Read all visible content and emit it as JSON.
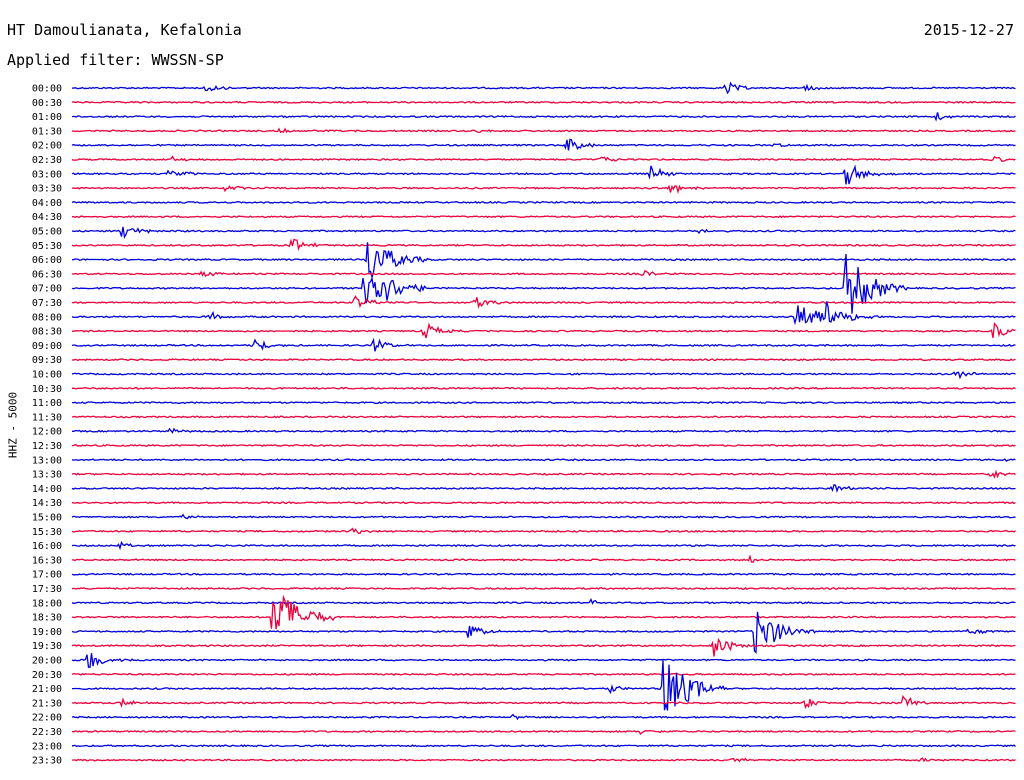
{
  "header": {
    "station": "HT Damoulianata, Kefalonia",
    "date": "2015-12-27",
    "filter": "Applied filter: WWSSN-SP"
  },
  "colors": {
    "even_trace": "#0000e0",
    "odd_trace": "#f0003c"
  },
  "chart_data": {
    "type": "line",
    "title": "HT Damoulianata, Kefalonia",
    "subtitle": "Applied filter: WWSSN-SP",
    "ylabel": "HHZ - 5000",
    "xlabel": "",
    "x_unit": "minutes within 30-min row",
    "xlim": [
      0,
      30
    ],
    "row_labels": [
      "00:00",
      "00:30",
      "01:00",
      "01:30",
      "02:00",
      "02:30",
      "03:00",
      "03:30",
      "04:00",
      "04:30",
      "05:00",
      "05:30",
      "06:00",
      "06:30",
      "07:00",
      "07:30",
      "08:00",
      "08:30",
      "09:00",
      "09:30",
      "10:00",
      "10:30",
      "11:00",
      "11:30",
      "12:00",
      "12:30",
      "13:00",
      "13:30",
      "14:00",
      "14:30",
      "15:00",
      "15:30",
      "16:00",
      "16:30",
      "17:00",
      "17:30",
      "18:00",
      "18:30",
      "19:00",
      "19:30",
      "20:00",
      "20:30",
      "21:00",
      "21:30",
      "22:00",
      "22:30",
      "23:00",
      "23:30"
    ],
    "row_colors_alternate": [
      "blue",
      "red"
    ],
    "events": [
      {
        "row": 0,
        "t": 4.2,
        "amp": 0.9
      },
      {
        "row": 0,
        "t": 20.8,
        "amp": 1.1
      },
      {
        "row": 0,
        "t": 23.3,
        "amp": 0.5
      },
      {
        "row": 2,
        "t": 27.5,
        "amp": 0.7
      },
      {
        "row": 3,
        "t": 6.6,
        "amp": 0.4
      },
      {
        "row": 3,
        "t": 12.9,
        "amp": 0.4
      },
      {
        "row": 4,
        "t": 15.7,
        "amp": 1.4
      },
      {
        "row": 4,
        "t": 22.3,
        "amp": 0.4
      },
      {
        "row": 5,
        "t": 3.2,
        "amp": 0.4
      },
      {
        "row": 5,
        "t": 16.8,
        "amp": 0.5
      },
      {
        "row": 5,
        "t": 29.3,
        "amp": 0.6
      },
      {
        "row": 6,
        "t": 3.1,
        "amp": 1.1
      },
      {
        "row": 6,
        "t": 18.4,
        "amp": 1.1
      },
      {
        "row": 6,
        "t": 24.6,
        "amp": 2.0
      },
      {
        "row": 7,
        "t": 4.9,
        "amp": 0.8
      },
      {
        "row": 7,
        "t": 19.0,
        "amp": 1.2
      },
      {
        "row": 10,
        "t": 1.6,
        "amp": 1.3
      },
      {
        "row": 10,
        "t": 19.9,
        "amp": 0.6
      },
      {
        "row": 11,
        "t": 7.0,
        "amp": 1.2
      },
      {
        "row": 12,
        "t": 9.4,
        "amp": 4.0
      },
      {
        "row": 13,
        "t": 4.1,
        "amp": 0.6
      },
      {
        "row": 13,
        "t": 18.1,
        "amp": 0.6
      },
      {
        "row": 14,
        "t": 9.3,
        "amp": 5.0
      },
      {
        "row": 14,
        "t": 24.6,
        "amp": 5.0
      },
      {
        "row": 15,
        "t": 9.0,
        "amp": 1.2
      },
      {
        "row": 15,
        "t": 12.8,
        "amp": 1.1
      },
      {
        "row": 16,
        "t": 4.4,
        "amp": 0.7
      },
      {
        "row": 16,
        "t": 23.0,
        "amp": 3.0
      },
      {
        "row": 16,
        "t": 24.0,
        "amp": 2.4
      },
      {
        "row": 17,
        "t": 11.2,
        "amp": 1.3
      },
      {
        "row": 17,
        "t": 29.3,
        "amp": 1.4
      },
      {
        "row": 18,
        "t": 5.8,
        "amp": 1.1
      },
      {
        "row": 18,
        "t": 9.6,
        "amp": 1.0
      },
      {
        "row": 20,
        "t": 28.1,
        "amp": 0.8
      },
      {
        "row": 24,
        "t": 3.1,
        "amp": 0.5
      },
      {
        "row": 26,
        "t": 29.7,
        "amp": 0.4
      },
      {
        "row": 27,
        "t": 29.2,
        "amp": 0.6
      },
      {
        "row": 28,
        "t": 24.2,
        "amp": 0.7
      },
      {
        "row": 30,
        "t": 3.5,
        "amp": 0.4
      },
      {
        "row": 31,
        "t": 8.9,
        "amp": 0.5
      },
      {
        "row": 32,
        "t": 1.5,
        "amp": 0.5
      },
      {
        "row": 33,
        "t": 21.5,
        "amp": 0.6
      },
      {
        "row": 36,
        "t": 16.5,
        "amp": 0.6
      },
      {
        "row": 37,
        "t": 6.4,
        "amp": 5.0
      },
      {
        "row": 38,
        "t": 12.6,
        "amp": 1.2
      },
      {
        "row": 38,
        "t": 21.7,
        "amp": 4.0
      },
      {
        "row": 38,
        "t": 28.5,
        "amp": 0.6
      },
      {
        "row": 39,
        "t": 20.4,
        "amp": 1.7
      },
      {
        "row": 40,
        "t": 0.5,
        "amp": 1.6
      },
      {
        "row": 42,
        "t": 18.8,
        "amp": 5.0
      },
      {
        "row": 42,
        "t": 17.1,
        "amp": 0.6
      },
      {
        "row": 43,
        "t": 1.6,
        "amp": 0.6
      },
      {
        "row": 43,
        "t": 23.3,
        "amp": 0.8
      },
      {
        "row": 43,
        "t": 26.4,
        "amp": 1.1
      },
      {
        "row": 44,
        "t": 14.0,
        "amp": 0.4
      },
      {
        "row": 45,
        "t": 18.0,
        "amp": 0.4
      },
      {
        "row": 47,
        "t": 21.0,
        "amp": 0.5
      },
      {
        "row": 47,
        "t": 27.0,
        "amp": 0.4
      }
    ]
  }
}
